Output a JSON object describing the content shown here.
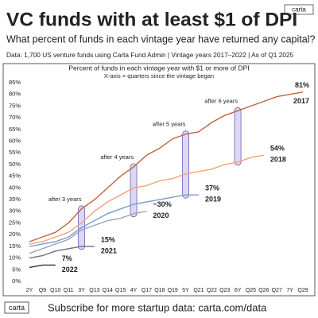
{
  "header": {
    "title": "VC funds with at least $1 of DPI",
    "subtitle": "What percent of funds in each vintage year have returned any capital?",
    "source": "Data: 1,700 US venture funds using Carta Fund Admin | Vintage years 2017–2022 | As of Q1 2025",
    "logo": "carta"
  },
  "chart_data": {
    "type": "line",
    "title": "Percent of funds in each vintage year with $1 or more of DPI",
    "subtitle": "X-axis = quarters since the vintage began",
    "categories": [
      "2Y",
      "Q9",
      "Q10",
      "Q11",
      "3Y",
      "Q13",
      "Q14",
      "Q15",
      "4Y",
      "Q17",
      "Q18",
      "Q19",
      "5Y",
      "Q21",
      "Q22",
      "Q23",
      "6Y",
      "Q25",
      "Q26",
      "Q27",
      "7Y",
      "Q29"
    ],
    "ylim": [
      0,
      85
    ],
    "yticks": [
      {
        "value": 0,
        "label": "0%"
      },
      {
        "value": 5,
        "label": "5%"
      },
      {
        "value": 10,
        "label": "10%"
      },
      {
        "value": 15,
        "label": "15%"
      },
      {
        "value": 20,
        "label": "20%"
      },
      {
        "value": 25,
        "label": "25%"
      },
      {
        "value": 30,
        "label": "30%"
      },
      {
        "value": 35,
        "label": "35%"
      },
      {
        "value": 40,
        "label": "40%"
      },
      {
        "value": 45,
        "label": "45%"
      },
      {
        "value": 50,
        "label": "50%"
      },
      {
        "value": 55,
        "label": "55%"
      },
      {
        "value": 60,
        "label": "60%"
      },
      {
        "value": 65,
        "label": "65%"
      },
      {
        "value": 70,
        "label": "70%"
      },
      {
        "value": 75,
        "label": "75%"
      },
      {
        "value": 80,
        "label": "80%"
      },
      {
        "value": 85,
        "label": "85%"
      }
    ],
    "grid": false,
    "annotations": [
      {
        "text": "after 3 years",
        "category": 4
      },
      {
        "text": "after 4 years",
        "category": 8
      },
      {
        "text": "after 5 years",
        "category": 12
      },
      {
        "text": "after 6 years",
        "category": 16
      }
    ],
    "series": [
      {
        "name": "2017",
        "color": "#c0643a",
        "values": [
          17,
          19,
          21,
          25,
          31,
          35,
          40,
          45,
          49,
          54,
          57,
          61,
          63,
          64,
          68,
          71,
          73,
          75,
          77,
          79,
          80,
          81
        ],
        "value_labels": [
          null,
          null,
          null,
          null,
          null,
          null,
          null,
          null,
          null,
          null,
          null,
          null,
          null,
          null,
          null,
          null,
          null,
          null,
          null,
          null,
          null,
          "81%"
        ]
      },
      {
        "name": "2018",
        "color": "#f2a273",
        "values": [
          16,
          17,
          19,
          21,
          25,
          30,
          34,
          37,
          40,
          41,
          43,
          44,
          46,
          47,
          48,
          50,
          51,
          53,
          54,
          null,
          null,
          null
        ],
        "value_labels": [
          null,
          null,
          null,
          null,
          null,
          null,
          null,
          null,
          null,
          null,
          null,
          null,
          null,
          null,
          null,
          null,
          null,
          null,
          "54%",
          null,
          null,
          null
        ]
      },
      {
        "name": "2019",
        "color": "#7b9bcc",
        "values": [
          15,
          16,
          17,
          19,
          23,
          26,
          29,
          31,
          33,
          34,
          35,
          36,
          37,
          37,
          null,
          null,
          null,
          null,
          null,
          null,
          null,
          null
        ],
        "value_labels": [
          null,
          null,
          null,
          null,
          null,
          null,
          null,
          null,
          null,
          null,
          null,
          null,
          null,
          "37%",
          null,
          null,
          null,
          null,
          null,
          null,
          null,
          null
        ]
      },
      {
        "name": "2020",
        "color": "#9aa4b6",
        "values": [
          12,
          14,
          16,
          18,
          22,
          24,
          26,
          27,
          29,
          30,
          null,
          null,
          null,
          null,
          null,
          null,
          null,
          null,
          null,
          null,
          null,
          null
        ],
        "value_labels": [
          null,
          null,
          null,
          null,
          null,
          null,
          null,
          null,
          null,
          "~30%",
          null,
          null,
          null,
          null,
          null,
          null,
          null,
          null,
          null,
          null,
          null,
          null
        ]
      },
      {
        "name": "2021",
        "color": "#6b7185",
        "values": [
          10,
          11,
          13,
          14,
          15,
          15,
          null,
          null,
          null,
          null,
          null,
          null,
          null,
          null,
          null,
          null,
          null,
          null,
          null,
          null,
          null,
          null
        ],
        "value_labels": [
          null,
          null,
          null,
          null,
          null,
          "15%",
          null,
          null,
          null,
          null,
          null,
          null,
          null,
          null,
          null,
          null,
          null,
          null,
          null,
          null,
          null,
          null
        ]
      },
      {
        "name": "2022",
        "color": "#333333",
        "values": [
          6,
          7,
          7,
          null,
          null,
          null,
          null,
          null,
          null,
          null,
          null,
          null,
          null,
          null,
          null,
          null,
          null,
          null,
          null,
          null,
          null,
          null
        ],
        "value_labels": [
          null,
          null,
          "7%",
          null,
          null,
          null,
          null,
          null,
          null,
          null,
          null,
          null,
          null,
          null,
          null,
          null,
          null,
          null,
          null,
          null,
          null,
          null
        ]
      }
    ]
  },
  "footer": {
    "logo": "carta",
    "text": "Subscribe for more startup data: carta.com/data"
  }
}
